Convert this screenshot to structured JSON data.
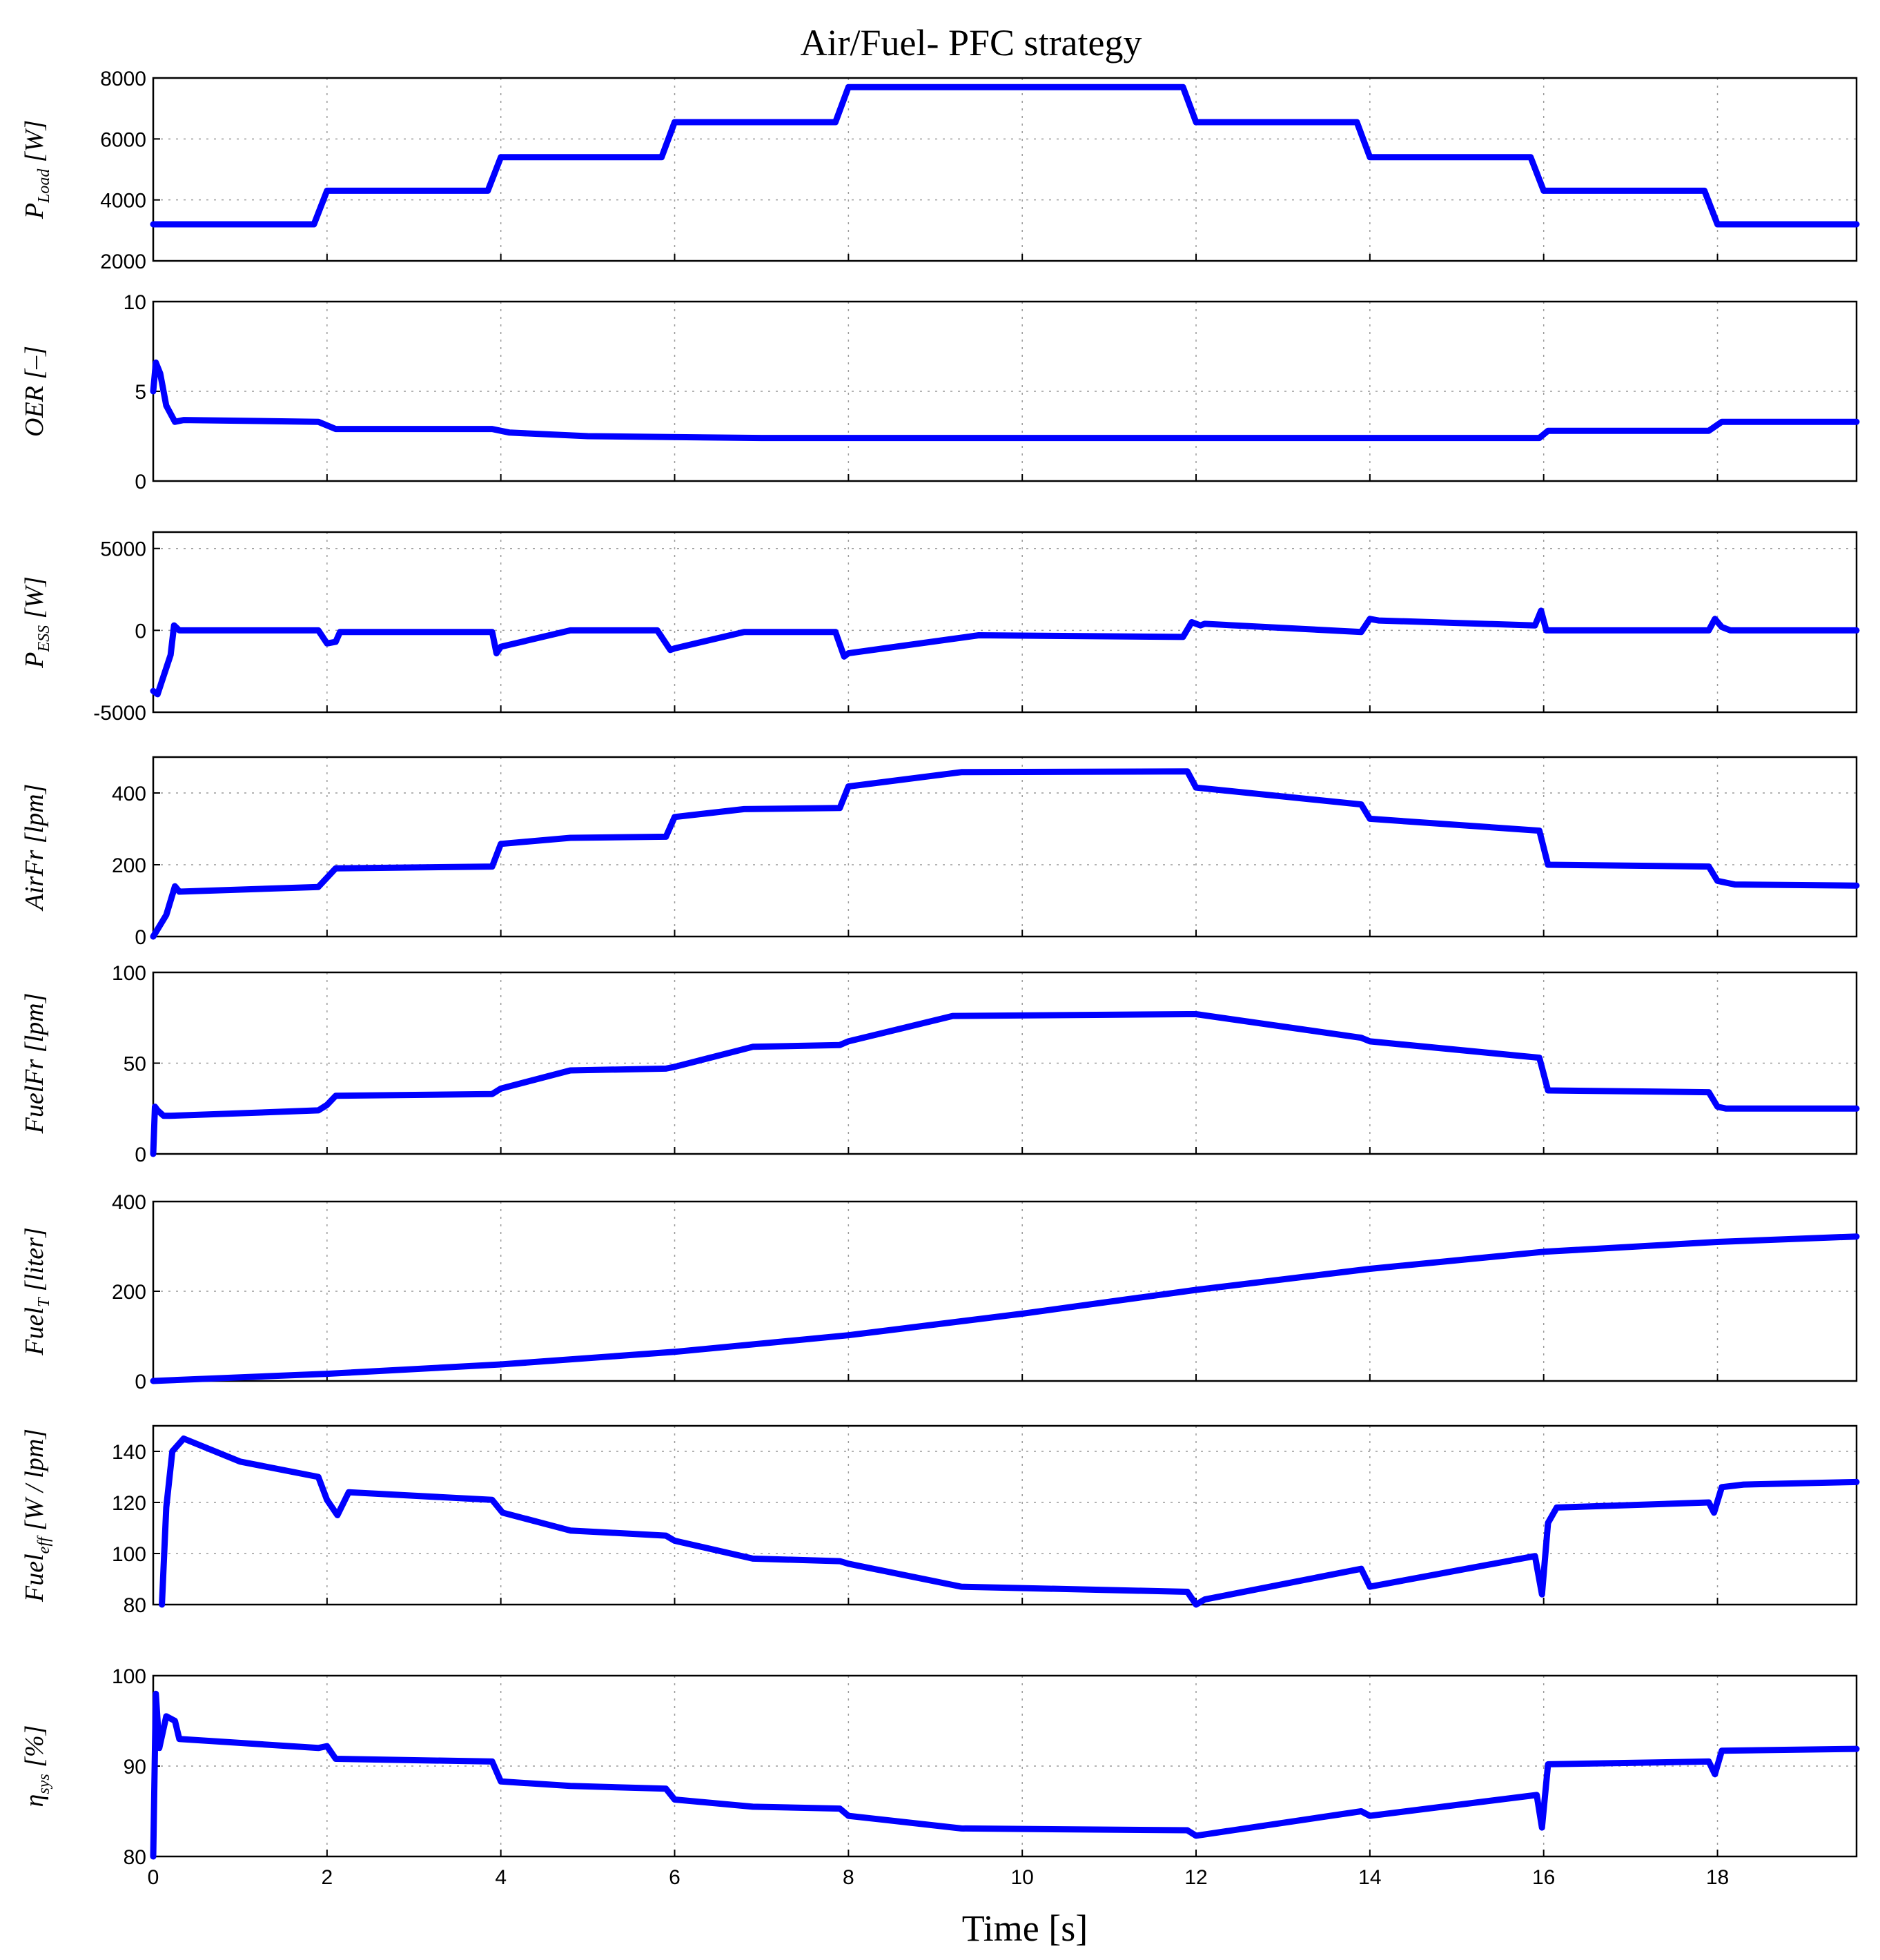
{
  "title": "Air/Fuel- PFC strategy",
  "chart_data": {
    "type": "line",
    "title": "Air/Fuel- PFC strategy",
    "xlabel": "Time [s]",
    "xlim": [
      0,
      19.6
    ],
    "xticks": [
      0,
      2,
      4,
      6,
      8,
      10,
      12,
      14,
      16,
      18
    ],
    "color": "#0000ff",
    "panels": [
      {
        "id": "pload",
        "ylabel": {
          "main": "P",
          "sub": "Load",
          "unit": " [W]"
        },
        "ylim": [
          2000,
          8000
        ],
        "yticks": [
          2000,
          4000,
          6000,
          8000
        ],
        "x": [
          0,
          1.85,
          2,
          3.85,
          4,
          5.85,
          6,
          7.85,
          8,
          11.85,
          12,
          13.85,
          14,
          15.85,
          16,
          17.85,
          18,
          19.6
        ],
        "y": [
          3200,
          3200,
          4300,
          4300,
          5400,
          5400,
          6550,
          6550,
          7700,
          7700,
          6550,
          6550,
          5400,
          5400,
          4300,
          4300,
          3200,
          3200
        ]
      },
      {
        "id": "oer",
        "ylabel": {
          "main": "OER",
          "sub": "",
          "unit": " [–]"
        },
        "ylim": [
          0,
          10
        ],
        "yticks": [
          0,
          5,
          10
        ],
        "x": [
          0,
          0.03,
          0.08,
          0.15,
          0.25,
          0.35,
          1.9,
          2.1,
          3.9,
          4.1,
          5,
          7,
          9,
          12,
          13.5,
          15.95,
          16.05,
          17.9,
          18.05,
          19.6
        ],
        "y": [
          5.0,
          6.6,
          6.0,
          4.2,
          3.3,
          3.4,
          3.3,
          2.9,
          2.9,
          2.7,
          2.5,
          2.4,
          2.4,
          2.4,
          2.4,
          2.4,
          2.8,
          2.8,
          3.3,
          3.3
        ]
      },
      {
        "id": "pess",
        "ylabel": {
          "main": "P",
          "sub": "ESS",
          "unit": " [W]"
        },
        "ylim": [
          -5000,
          6000
        ],
        "yticks": [
          -5000,
          0,
          5000
        ],
        "x": [
          0,
          0.05,
          0.2,
          0.24,
          0.3,
          1.9,
          2.0,
          2.1,
          2.15,
          3.9,
          3.95,
          4.0,
          4.8,
          5.8,
          5.95,
          6.0,
          6.8,
          7.85,
          7.95,
          8.0,
          9.5,
          11.85,
          11.95,
          12.05,
          12.1,
          13.9,
          14.0,
          14.1,
          15.9,
          15.97,
          16.03,
          16.1,
          17.9,
          17.97,
          18.05,
          18.15,
          19.6
        ],
        "y": [
          -3700,
          -3900,
          -1500,
          300,
          0,
          0,
          -800,
          -700,
          -100,
          -100,
          -1400,
          -1000,
          0,
          0,
          -1200,
          -1100,
          -100,
          -100,
          -1600,
          -1400,
          -300,
          -400,
          500,
          300,
          400,
          -100,
          700,
          600,
          300,
          1200,
          0,
          0,
          0,
          700,
          200,
          0,
          0
        ]
      },
      {
        "id": "airfr",
        "ylabel": {
          "main": "AirFr",
          "sub": "",
          "unit": " [lpm]"
        },
        "ylim": [
          0,
          500
        ],
        "yticks": [
          0,
          200,
          400
        ],
        "x": [
          0,
          0.15,
          0.25,
          0.3,
          1.9,
          2.1,
          3.9,
          4.0,
          4.8,
          5.9,
          6.0,
          6.8,
          7.9,
          8.0,
          9.3,
          11.9,
          12.0,
          13.9,
          14.0,
          15.95,
          16.05,
          17.9,
          18.0,
          18.2,
          19.6
        ],
        "y": [
          0,
          60,
          140,
          125,
          138,
          190,
          195,
          258,
          275,
          278,
          333,
          355,
          358,
          418,
          458,
          460,
          415,
          368,
          328,
          295,
          200,
          195,
          155,
          145,
          142
        ]
      },
      {
        "id": "fuelfr",
        "ylabel": {
          "main": "FuelFr",
          "sub": "",
          "unit": " [lpm]"
        },
        "ylim": [
          0,
          100
        ],
        "yticks": [
          0,
          50,
          100
        ],
        "x": [
          0,
          0.02,
          0.05,
          0.12,
          0.2,
          1.9,
          2.0,
          2.1,
          3.9,
          4.0,
          4.8,
          5.9,
          6.0,
          6.9,
          7.9,
          8.0,
          9.2,
          11.9,
          12.0,
          13.9,
          14.0,
          15.95,
          16.05,
          17.9,
          18.0,
          18.1,
          19.6
        ],
        "y": [
          0,
          26,
          24,
          21,
          21,
          24,
          27,
          32,
          33,
          36,
          46,
          47,
          48,
          59,
          60,
          62,
          76,
          77,
          77,
          64,
          62,
          53,
          35,
          34,
          26,
          25,
          25
        ]
      },
      {
        "id": "fuelt",
        "ylabel": {
          "main": "Fuel",
          "sub": "T",
          "unit": " [liter]"
        },
        "ylim": [
          0,
          400
        ],
        "yticks": [
          0,
          200,
          400
        ],
        "x": [
          0,
          2,
          4,
          6,
          8,
          10,
          12,
          14,
          16,
          18,
          19.6
        ],
        "y": [
          0,
          16,
          37,
          65,
          102,
          150,
          203,
          250,
          288,
          310,
          322
        ]
      },
      {
        "id": "fueleff",
        "ylabel": {
          "main": "Fuel",
          "sub": "eff",
          "unit": " [W / lpm]"
        },
        "ylim": [
          80,
          150
        ],
        "yticks": [
          80,
          100,
          120,
          140
        ],
        "x": [
          0.1,
          0.15,
          0.22,
          0.35,
          1.0,
          1.9,
          2.0,
          2.12,
          2.25,
          3.9,
          4.02,
          4.8,
          5.9,
          6.0,
          6.9,
          7.9,
          8.0,
          9.3,
          11.9,
          12.0,
          12.1,
          13.9,
          14.0,
          15.9,
          15.98,
          16.05,
          16.15,
          17.9,
          17.96,
          18.05,
          18.3,
          19.6
        ],
        "y": [
          80,
          118,
          140,
          145,
          136,
          130,
          121,
          115,
          124,
          121,
          116,
          109,
          107,
          105,
          98,
          97,
          96,
          87,
          85,
          80,
          82,
          94,
          87,
          99,
          84,
          112,
          118,
          120,
          116,
          126,
          127,
          128
        ]
      },
      {
        "id": "etasys",
        "ylabel": {
          "main": "η",
          "sub": "sys",
          "unit": " [%]"
        },
        "ylim": [
          80,
          100
        ],
        "yticks": [
          80,
          90,
          100
        ],
        "x": [
          0,
          0.03,
          0.07,
          0.15,
          0.25,
          0.3,
          1.9,
          2.0,
          2.1,
          3.9,
          4.0,
          4.8,
          5.9,
          6.0,
          6.9,
          7.9,
          8.0,
          9.3,
          11.9,
          12.0,
          13.9,
          14.0,
          15.92,
          15.98,
          16.05,
          17.9,
          17.97,
          18.05,
          19.6
        ],
        "y": [
          80,
          98,
          92,
          95.5,
          95,
          93,
          92,
          92.2,
          90.8,
          90.5,
          88.3,
          87.8,
          87.5,
          86.3,
          85.5,
          85.3,
          84.5,
          83.1,
          82.9,
          82.3,
          85,
          84.5,
          86.8,
          83.2,
          90.2,
          90.5,
          89.1,
          91.7,
          91.9
        ]
      }
    ]
  }
}
